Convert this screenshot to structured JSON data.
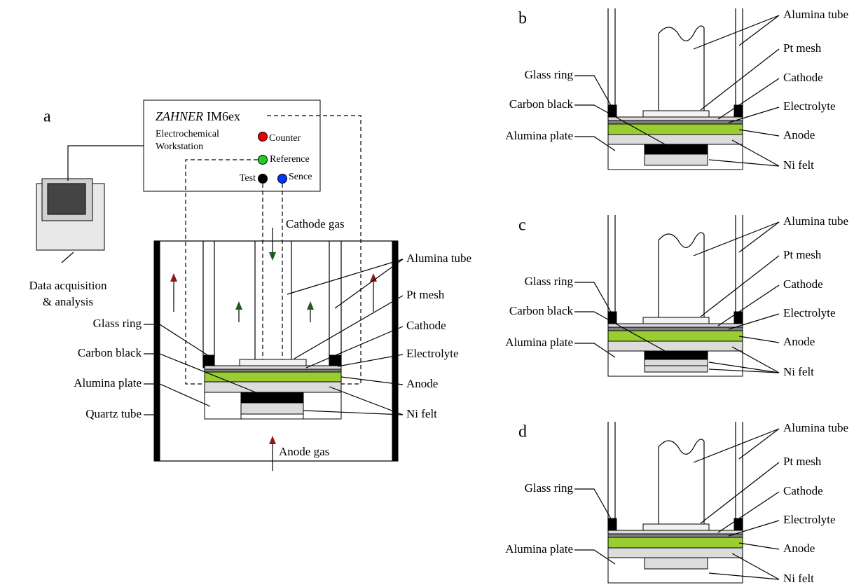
{
  "panel_a": {
    "letter": "a",
    "instrument": {
      "brand": "ZAHNER",
      "model": "IM6ex",
      "line1": "Electrochemical",
      "line2": "Workstation"
    },
    "terminals": [
      "Counter",
      "Reference",
      "Test",
      "Sence"
    ],
    "computer": [
      "Data acquisition",
      "& analysis"
    ],
    "cathode_gas": "Cathode gas",
    "anode_gas": "Anode gas",
    "left_labels": [
      "Glass ring",
      "Carbon black",
      "Alumina plate",
      "Quartz tube"
    ],
    "right_labels": [
      "Alumina tube",
      "Pt mesh",
      "Cathode",
      "Electrolyte",
      "Anode",
      "Ni felt"
    ]
  },
  "panel_b": {
    "letter": "b",
    "left_labels": [
      "Glass ring",
      "Carbon black",
      "Alumina plate"
    ],
    "right_labels": [
      "Alumina tube",
      "Pt mesh",
      "Cathode",
      "Electrolyte",
      "Anode",
      "Ni felt"
    ]
  },
  "panel_c": {
    "letter": "c",
    "left_labels": [
      "Glass ring",
      "Carbon black",
      "Alumina plate"
    ],
    "right_labels": [
      "Alumina tube",
      "Pt mesh",
      "Cathode",
      "Electrolyte",
      "Anode",
      "Ni felt"
    ]
  },
  "panel_d": {
    "letter": "d",
    "left_labels": [
      "Glass ring",
      "Alumina plate"
    ],
    "right_labels": [
      "Alumina tube",
      "Pt mesh",
      "Cathode",
      "Electrolyte",
      "Anode",
      "Ni felt"
    ]
  }
}
